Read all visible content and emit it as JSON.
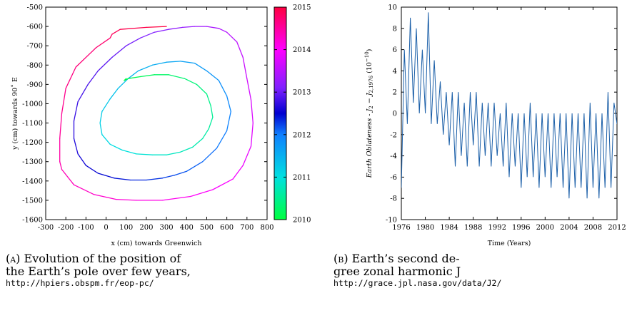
{
  "chart_data": [
    {
      "type": "line",
      "xlabel": "x (cm) towards Greenwich",
      "ylabel": "y (cm) towards 90˚ E",
      "xlim": [
        -300,
        800
      ],
      "ylim": [
        -1600,
        -500
      ],
      "x_ticks": [
        "-300",
        "-200",
        "-100",
        "0",
        "100",
        "200",
        "300",
        "400",
        "500",
        "600",
        "700",
        "800"
      ],
      "y_ticks": [
        "-500",
        "-600",
        "-700",
        "-800",
        "-900",
        "-1000",
        "-1100",
        "-1200",
        "-1300",
        "-1400",
        "-1500",
        "-1600"
      ],
      "colorbar": {
        "range": [
          2010,
          2015
        ],
        "ticks": [
          "2015",
          "2014",
          "2013",
          "2012",
          "2011",
          "2010"
        ],
        "colors": [
          "#00ff40",
          "#00e0e0",
          "#1080ff",
          "#0000d0",
          "#8020ff",
          "#ff00ff",
          "#ff0040"
        ]
      },
      "series": [
        {
          "x": [
            300,
            200,
            70,
            30,
            20,
            -50,
            -150,
            -200,
            -220,
            -230,
            -230,
            -220,
            -160,
            -60,
            50,
            150,
            280,
            420,
            530,
            630,
            680,
            720,
            730,
            720,
            700,
            680,
            650,
            600,
            560,
            500,
            440,
            380,
            310,
            240,
            170,
            100,
            30,
            -40,
            -90,
            -140,
            -160,
            -160,
            -140,
            -100,
            -40,
            40,
            120,
            200,
            280,
            340,
            400,
            480,
            550,
            600,
            620,
            600,
            560,
            500,
            440,
            370,
            300,
            230,
            160,
            110,
            60,
            20,
            -20,
            -30,
            -20,
            20,
            80,
            150,
            230,
            300,
            370,
            430,
            480,
            510,
            530,
            520,
            500,
            450,
            390,
            310,
            240,
            170,
            110,
            90,
            100
          ],
          "y": [
            -600,
            -605,
            -615,
            -640,
            -660,
            -710,
            -810,
            -920,
            -1050,
            -1180,
            -1300,
            -1340,
            -1420,
            -1470,
            -1495,
            -1500,
            -1500,
            -1480,
            -1445,
            -1390,
            -1320,
            -1220,
            -1100,
            -980,
            -870,
            -760,
            -680,
            -630,
            -610,
            -600,
            -600,
            -605,
            -615,
            -630,
            -660,
            -700,
            -760,
            -830,
            -900,
            -990,
            -1090,
            -1180,
            -1260,
            -1320,
            -1360,
            -1385,
            -1395,
            -1395,
            -1385,
            -1370,
            -1350,
            -1300,
            -1230,
            -1140,
            -1040,
            -960,
            -880,
            -830,
            -790,
            -780,
            -785,
            -800,
            -830,
            -870,
            -920,
            -975,
            -1040,
            -1100,
            -1160,
            -1210,
            -1240,
            -1260,
            -1265,
            -1265,
            -1250,
            -1225,
            -1180,
            -1130,
            -1070,
            -1010,
            -950,
            -900,
            -870,
            -850,
            -850,
            -860,
            -870,
            -880,
            -870
          ]
        },
        {
          "x": [
            1976.0,
            1976.5,
            1977.0,
            1977.5,
            1978.0,
            1978.5,
            1979.0,
            1979.5,
            1980.0,
            1980.5,
            1981.0,
            1981.5,
            1982.0,
            1982.5,
            1983.0,
            1983.5,
            1984.0,
            1984.5,
            1985.0,
            1985.5,
            1986.0,
            1986.5,
            1987.0,
            1987.5,
            1988.0,
            1988.5,
            1989.0,
            1989.5,
            1990.0,
            1990.5,
            1991.0,
            1991.5,
            1992.0,
            1992.5,
            1993.0,
            1993.5,
            1994.0,
            1994.5,
            1995.0,
            1995.5,
            1996.0,
            1996.5,
            1997.0,
            1997.5,
            1998.0,
            1998.5,
            1999.0,
            1999.5,
            2000.0,
            2000.5,
            2001.0,
            2001.5,
            2002.0,
            2002.5,
            2003.0,
            2003.5,
            2004.0,
            2004.5,
            2005.0,
            2005.5,
            2006.0,
            2006.5,
            2007.0,
            2007.5,
            2008.0,
            2008.5,
            2009.0,
            2009.5,
            2010.0,
            2010.5,
            2011.0,
            2011.5,
            2012.0
          ],
          "y": [
            -7,
            6,
            -1,
            9,
            1,
            8,
            0,
            6,
            0,
            9.5,
            -1,
            5,
            -1,
            3,
            -2,
            2,
            -3,
            2,
            -5,
            2,
            -4,
            1,
            -5,
            2,
            -3,
            2,
            -5,
            1,
            -4,
            1,
            -5,
            1,
            -4,
            0,
            -5,
            1,
            -6,
            0,
            -5,
            0,
            -7,
            0,
            -6,
            1,
            -6,
            0,
            -7,
            0,
            -6,
            0,
            -7,
            0,
            -6,
            0,
            -7,
            0,
            -8,
            0,
            -7,
            0,
            -7,
            0,
            -8,
            1,
            -7,
            0,
            -8,
            0,
            -7,
            2,
            -7,
            1,
            -1
          ]
        }
      ]
    },
    {
      "type": "line",
      "xlabel": "Time (Years)",
      "ylabel": "Earth Oblateness - J",
      "ylabel_sub1": "2",
      "ylabel_mid": " − J",
      "ylabel_sub2": "2,1976",
      "ylabel_unit": "  (10",
      "ylabel_exp": "−10",
      "ylabel_close": ")",
      "xlim": [
        1976,
        2012
      ],
      "ylim": [
        -10,
        10
      ],
      "x_ticks": [
        "1976",
        "1980",
        "1984",
        "1988",
        "1992",
        "1996",
        "2000",
        "2004",
        "2008",
        "2012"
      ],
      "y_ticks": [
        "10",
        "8",
        "6",
        "4",
        "2",
        "0",
        "-2",
        "-4",
        "-6",
        "-8",
        "-10"
      ]
    }
  ],
  "captions": {
    "a_label": "(a)",
    "a_line1": " Evolution of the position of",
    "a_line2": "the Earth’s pole over few years,",
    "a_url": "http://hpiers.obspm.fr/eop-pc/",
    "b_label": "(b)",
    "b_line1": " Earth’s second de-",
    "b_line2": "gree zonal harmonic J",
    "b_url": "http://grace.jpl.nasa.gov/data/J2/"
  }
}
